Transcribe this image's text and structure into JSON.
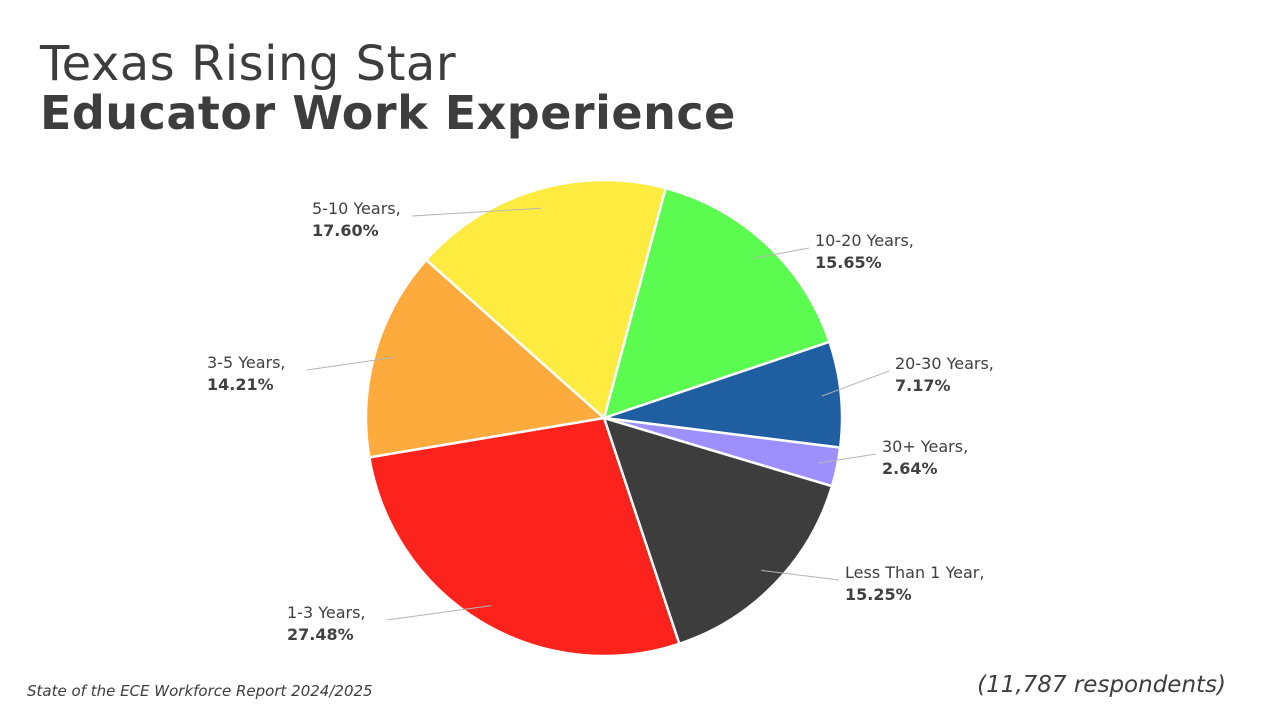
{
  "title": {
    "line1": "Texas Rising Star",
    "line2": "Educator Work Experience"
  },
  "footer": {
    "source": "State of the ECE Workforce Report 2024/2025",
    "respondents": "(11,787 respondents)"
  },
  "chart_data": {
    "type": "pie",
    "categories": [
      "10-20 Years,",
      "20-30 Years,",
      "30+ Years,",
      "Less Than 1 Year,",
      "1-3 Years,",
      "3-5 Years,",
      "5-10 Years,"
    ],
    "values": [
      15.65,
      7.17,
      2.64,
      15.25,
      27.48,
      14.21,
      17.6
    ],
    "value_labels": [
      "15.65%",
      "7.17%",
      "2.64%",
      "15.25%",
      "27.48%",
      "14.21%",
      "17.60%"
    ],
    "colors": [
      "#5cfb50",
      "#1f5fa1",
      "#9d90fd",
      "#3d3d3d",
      "#fb231c",
      "#fdab3c",
      "#fdeb40"
    ],
    "start_angle_deg": 15,
    "direction": "clockwise",
    "legend": "none"
  }
}
